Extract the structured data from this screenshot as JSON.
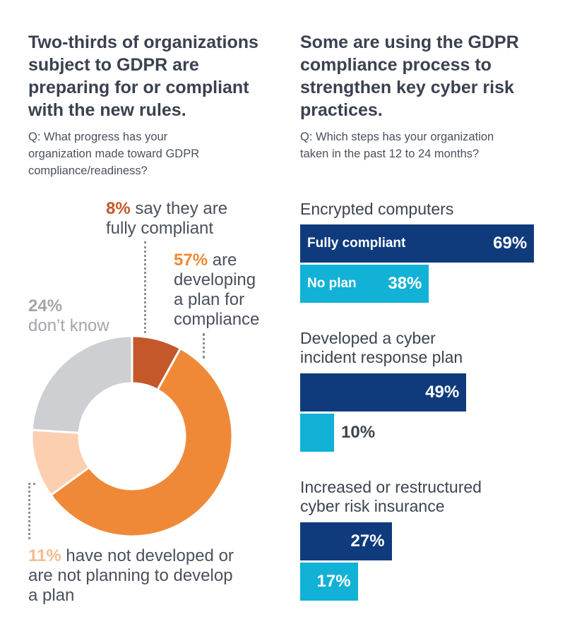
{
  "left": {
    "heading": [
      "Two-thirds of organizations",
      "subject to GDPR are",
      "preparing for or compliant",
      "with the new rules."
    ],
    "question": [
      "Q: What progress has your",
      "organization made toward GDPR",
      "compliance/readiness?"
    ]
  },
  "right": {
    "heading": [
      "Some are using the GDPR",
      "compliance process to",
      "strengthen key cyber risk",
      "practices."
    ],
    "question": [
      "Q: Which steps has your organization",
      "taken in the past 12 to 24 months?"
    ]
  },
  "chart_data": [
    {
      "type": "pie",
      "variant": "donut",
      "slices": [
        {
          "label": "say they are fully compliant",
          "pct_text": "8%",
          "value": 8,
          "color": "#c4582a"
        },
        {
          "label": "are developing a plan for compliance",
          "pct_text": "57%",
          "value": 57,
          "color": "#f08937"
        },
        {
          "label": "have not developed or are not planning to develop a plan",
          "pct_text": "11%",
          "value": 11,
          "color": "#fbcfb0"
        },
        {
          "label": "don’t know",
          "pct_text": "24%",
          "value": 24,
          "color": "#cdcfd2"
        }
      ],
      "annotations": {
        "compliant": [
          "say they are",
          "fully compliant"
        ],
        "developing": [
          "are",
          "developing",
          "a plan for",
          "compliance"
        ],
        "dont_know": [
          "don’t know"
        ],
        "not_planning": [
          "have not developed or",
          "are not planning to develop",
          "a plan"
        ]
      }
    },
    {
      "type": "bar",
      "orientation": "horizontal",
      "xlim": [
        0,
        100
      ],
      "series_colors": {
        "Fully compliant": "#0f3b7d",
        "No plan": "#12b1d6"
      },
      "legend_labels": {
        "fully": "Fully compliant",
        "noplan": "No plan"
      },
      "groups": [
        {
          "title": [
            "Encrypted computers"
          ],
          "fully": 69,
          "fully_text": "69%",
          "noplan": 38,
          "noplan_text": "38%"
        },
        {
          "title": [
            "Developed a cyber",
            "incident response plan"
          ],
          "fully": 49,
          "fully_text": "49%",
          "noplan": 10,
          "noplan_text": "10%"
        },
        {
          "title": [
            "Increased or restructured",
            "cyber risk insurance"
          ],
          "fully": 27,
          "fully_text": "27%",
          "noplan": 17,
          "noplan_text": "17%"
        }
      ]
    }
  ]
}
